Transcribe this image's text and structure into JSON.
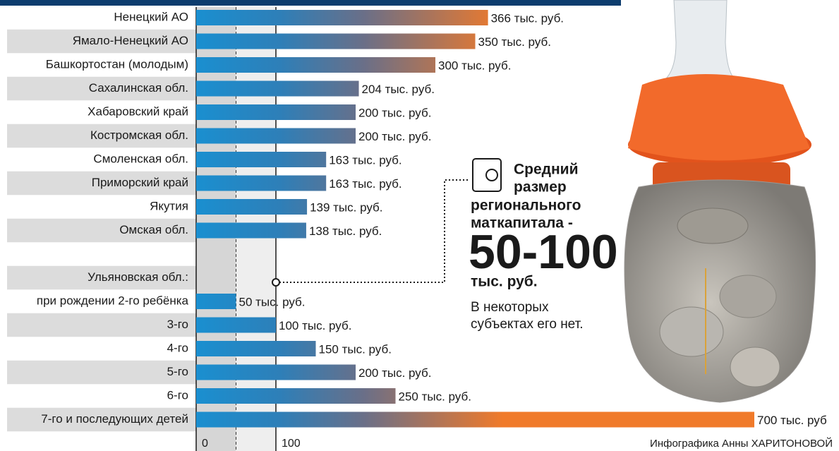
{
  "chart_data": {
    "type": "bar",
    "orientation": "horizontal",
    "categories": [
      "Ненецкий АО",
      "Ямало-Ненецкий АО",
      "Башкортостан (молодым)",
      "Сахалинская обл.",
      "Хабаровский край",
      "Костромская обл.",
      "Смоленская обл.",
      "Приморский край",
      "Якутия",
      "Омская обл.",
      null,
      "Ульяновская обл.:",
      "при рождении 2-го ребёнка",
      "3-го",
      "4-го",
      "5-го",
      "6-го",
      "7-го и последующих детей"
    ],
    "values": [
      366,
      350,
      300,
      204,
      200,
      200,
      163,
      163,
      139,
      138,
      null,
      null,
      50,
      100,
      150,
      200,
      250,
      700
    ],
    "value_labels": [
      "366 тыс. руб.",
      "350 тыс. руб.",
      "300 тыс. руб.",
      "204 тыс. руб.",
      "200 тыс. руб.",
      "200 тыс. руб.",
      "163 тыс. руб.",
      "163 тыс. руб.",
      "139 тыс. руб.",
      "138 тыс. руб.",
      null,
      null,
      "50 тыс. руб.",
      "100 тыс. руб.",
      "150 тыс. руб.",
      "200 тыс. руб.",
      "250 тыс. руб.",
      "700 тыс. руб"
    ],
    "colors": [
      "#1a8fd0",
      "#f07a2a"
    ],
    "xlim": [
      0,
      800
    ],
    "xticks": [
      0,
      100
    ]
  },
  "callout": {
    "heading": [
      "Средний",
      "размер",
      "регионального",
      "маткапитала -"
    ],
    "value": "50-100",
    "unit": "тыс. руб.",
    "note": [
      "В некоторых",
      "субъектах его нет."
    ]
  },
  "credit": "Инфографика Анны ХАРИТОНОВОЙ"
}
